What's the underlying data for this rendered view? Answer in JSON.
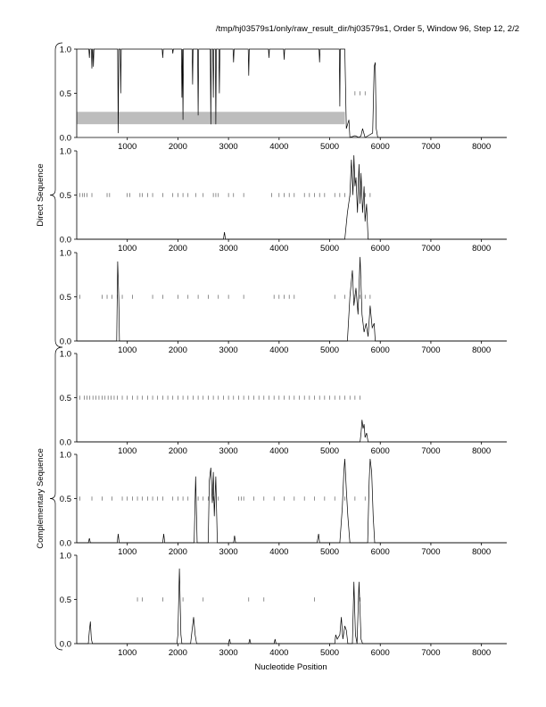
{
  "page": {
    "title": "/tmp/hj03579s1/only/raw_result_dir/hj03579s1, Order 5, Window 96, Step 12, 2/2"
  },
  "colors": {
    "line": "#000000",
    "axis": "#000000",
    "mark": "#444444",
    "band": "#bdbdbd"
  },
  "chart_data": {
    "type": "line",
    "xlabel": "Nucleotide Position",
    "group_labels": [
      "Direct Sequence",
      "Complementary Sequence"
    ],
    "xlim": [
      0,
      8500
    ],
    "ylim": [
      0,
      1
    ],
    "x_ticks": [
      1000,
      2000,
      3000,
      4000,
      5000,
      6000,
      7000,
      8000
    ],
    "y_ticks": [
      "0.0",
      "0.5",
      "1.0"
    ],
    "panels": [
      {
        "group": "Direct Sequence",
        "shaded_band": {
          "x": [
            0,
            5300
          ],
          "y": [
            0.15,
            0.29
          ]
        },
        "default_y": 1.0,
        "dips": [
          [
            250,
            0.9
          ],
          [
            300,
            0.78
          ],
          [
            330,
            0.8
          ],
          [
            820,
            0.05
          ],
          [
            870,
            0.5
          ],
          [
            1700,
            0.9
          ],
          [
            1900,
            0.95
          ],
          [
            2080,
            0.45
          ],
          [
            2100,
            0.2
          ],
          [
            2290,
            0.6
          ],
          [
            2400,
            0.25
          ],
          [
            2650,
            0.15
          ],
          [
            2700,
            0.45
          ],
          [
            2750,
            0.15
          ],
          [
            2820,
            0.5
          ],
          [
            3100,
            0.85
          ],
          [
            3400,
            0.7
          ],
          [
            3800,
            0.9
          ],
          [
            4100,
            0.88
          ],
          [
            4800,
            0.85
          ],
          [
            5200,
            0.35
          ]
        ],
        "trace": [
          [
            5250,
            1.0
          ],
          [
            5300,
            1.0
          ],
          [
            5330,
            0.1
          ],
          [
            5380,
            0.2
          ],
          [
            5400,
            0.0
          ],
          [
            5500,
            0.02
          ],
          [
            5580,
            0.0
          ],
          [
            5620,
            0.02
          ],
          [
            5650,
            0.1
          ],
          [
            5700,
            0.0
          ],
          [
            5850,
            0.05
          ],
          [
            5880,
            0.8
          ],
          [
            5900,
            0.85
          ],
          [
            5920,
            0.1
          ],
          [
            5950,
            0.0
          ],
          [
            8500,
            0.0
          ]
        ],
        "ticks_y": 0.5,
        "ticks_x": [
          5500,
          5600,
          5700
        ]
      },
      {
        "group": "Direct Sequence",
        "default_y": 0.0,
        "trace": [
          [
            0,
            0
          ],
          [
            2900,
            0
          ],
          [
            2920,
            0.08
          ],
          [
            2940,
            0
          ],
          [
            5300,
            0
          ],
          [
            5350,
            0.3
          ],
          [
            5400,
            0.5
          ],
          [
            5430,
            0.9
          ],
          [
            5460,
            0.5
          ],
          [
            5480,
            0.95
          ],
          [
            5500,
            0.6
          ],
          [
            5520,
            0.7
          ],
          [
            5550,
            0.3
          ],
          [
            5580,
            0.85
          ],
          [
            5600,
            0.4
          ],
          [
            5620,
            0.75
          ],
          [
            5650,
            0.3
          ],
          [
            5680,
            0.6
          ],
          [
            5700,
            0.2
          ],
          [
            5730,
            0.4
          ],
          [
            5760,
            0.0
          ],
          [
            8500,
            0
          ]
        ],
        "ticks_y": 0.5,
        "ticks_x": [
          60,
          110,
          150,
          200,
          300,
          600,
          650,
          1000,
          1050,
          1250,
          1300,
          1400,
          1500,
          1700,
          1900,
          2000,
          2100,
          2200,
          2350,
          2500,
          2700,
          2750,
          2800,
          3000,
          3100,
          3300,
          3850,
          4000,
          4100,
          4200,
          4300,
          4500,
          4600,
          4700,
          4800,
          4900,
          5100,
          5200,
          5300,
          5400,
          5600,
          5700,
          5800
        ]
      },
      {
        "group": "Direct Sequence",
        "default_y": 0.0,
        "trace": [
          [
            0,
            0
          ],
          [
            790,
            0
          ],
          [
            800,
            0.5
          ],
          [
            810,
            0.9
          ],
          [
            830,
            0.5
          ],
          [
            845,
            0
          ],
          [
            5350,
            0
          ],
          [
            5400,
            0.5
          ],
          [
            5450,
            0.8
          ],
          [
            5480,
            0.4
          ],
          [
            5520,
            0.6
          ],
          [
            5560,
            0.3
          ],
          [
            5600,
            0.95
          ],
          [
            5640,
            0.3
          ],
          [
            5680,
            0.1
          ],
          [
            5720,
            0.2
          ],
          [
            5760,
            0.05
          ],
          [
            5800,
            0.4
          ],
          [
            5840,
            0.15
          ],
          [
            5880,
            0.2
          ],
          [
            5900,
            0
          ],
          [
            8500,
            0
          ]
        ],
        "ticks_y": 0.5,
        "ticks_x": [
          60,
          500,
          600,
          700,
          800,
          900,
          1100,
          1500,
          1700,
          2000,
          2200,
          2400,
          2600,
          2800,
          3000,
          3300,
          3900,
          4000,
          4100,
          4200,
          4300,
          5100,
          5300,
          5500,
          5600,
          5700,
          5800
        ]
      },
      {
        "group": "Complementary Sequence",
        "default_y": 0.0,
        "trace": [
          [
            0,
            0
          ],
          [
            5600,
            0
          ],
          [
            5620,
            0.1
          ],
          [
            5640,
            0.25
          ],
          [
            5660,
            0.15
          ],
          [
            5680,
            0.2
          ],
          [
            5700,
            0.05
          ],
          [
            5730,
            0.1
          ],
          [
            5760,
            0.0
          ],
          [
            8500,
            0
          ]
        ],
        "ticks_y": 0.5,
        "ticks_x": [
          60,
          150,
          200,
          260,
          320,
          380,
          440,
          500,
          560,
          620,
          680,
          740,
          800,
          900,
          1000,
          1100,
          1200,
          1300,
          1400,
          1500,
          1600,
          1700,
          1800,
          1900,
          2000,
          2100,
          2200,
          2300,
          2400,
          2500,
          2600,
          2700,
          2800,
          2900,
          3000,
          3100,
          3200,
          3300,
          3400,
          3500,
          3600,
          3700,
          3800,
          3900,
          4000,
          4100,
          4200,
          4300,
          4400,
          4500,
          4600,
          4700,
          4800,
          4900,
          5000,
          5100,
          5200,
          5300,
          5400,
          5500,
          5600
        ]
      },
      {
        "group": "Complementary Sequence",
        "default_y": 0.0,
        "trace": [
          [
            0,
            0
          ],
          [
            230,
            0
          ],
          [
            250,
            0.05
          ],
          [
            270,
            0
          ],
          [
            800,
            0
          ],
          [
            820,
            0.1
          ],
          [
            840,
            0
          ],
          [
            1700,
            0
          ],
          [
            1720,
            0.1
          ],
          [
            1740,
            0
          ],
          [
            2320,
            0
          ],
          [
            2350,
            0.75
          ],
          [
            2380,
            0
          ],
          [
            2600,
            0
          ],
          [
            2620,
            0.7
          ],
          [
            2650,
            0.85
          ],
          [
            2680,
            0.45
          ],
          [
            2700,
            0.8
          ],
          [
            2720,
            0.3
          ],
          [
            2750,
            0.75
          ],
          [
            2780,
            0
          ],
          [
            3100,
            0
          ],
          [
            3120,
            0.08
          ],
          [
            3140,
            0
          ],
          [
            4750,
            0
          ],
          [
            4780,
            0.1
          ],
          [
            4800,
            0
          ],
          [
            5200,
            0
          ],
          [
            5250,
            0.4
          ],
          [
            5280,
            0.8
          ],
          [
            5300,
            0.95
          ],
          [
            5330,
            0.6
          ],
          [
            5360,
            0.3
          ],
          [
            5400,
            0
          ],
          [
            5750,
            0
          ],
          [
            5780,
            0.7
          ],
          [
            5800,
            0.95
          ],
          [
            5830,
            0.8
          ],
          [
            5860,
            0.3
          ],
          [
            5890,
            0
          ],
          [
            8500,
            0
          ]
        ],
        "ticks_y": 0.5,
        "ticks_x": [
          60,
          300,
          500,
          700,
          900,
          1000,
          1100,
          1200,
          1300,
          1400,
          1500,
          1600,
          1700,
          1900,
          2000,
          2100,
          2200,
          2400,
          2500,
          2600,
          2700,
          2800,
          3200,
          3250,
          3300,
          3500,
          3700,
          3900,
          4100,
          4300,
          4500,
          4700,
          4900,
          5100,
          5300,
          5500,
          5700
        ]
      },
      {
        "group": "Complementary Sequence",
        "default_y": 0.0,
        "trace": [
          [
            0,
            0
          ],
          [
            230,
            0
          ],
          [
            250,
            0.15
          ],
          [
            270,
            0.25
          ],
          [
            290,
            0.05
          ],
          [
            310,
            0
          ],
          [
            1980,
            0
          ],
          [
            2000,
            0.1
          ],
          [
            2030,
            0.85
          ],
          [
            2060,
            0.1
          ],
          [
            2080,
            0
          ],
          [
            2250,
            0
          ],
          [
            2280,
            0.15
          ],
          [
            2310,
            0.3
          ],
          [
            2340,
            0.1
          ],
          [
            2370,
            0
          ],
          [
            3000,
            0
          ],
          [
            3020,
            0.05
          ],
          [
            3040,
            0
          ],
          [
            3400,
            0
          ],
          [
            3420,
            0.05
          ],
          [
            3440,
            0
          ],
          [
            3900,
            0
          ],
          [
            3920,
            0.05
          ],
          [
            3940,
            0
          ],
          [
            5100,
            0
          ],
          [
            5120,
            0.1
          ],
          [
            5150,
            0.05
          ],
          [
            5200,
            0.1
          ],
          [
            5230,
            0.3
          ],
          [
            5260,
            0.05
          ],
          [
            5300,
            0.2
          ],
          [
            5330,
            0.15
          ],
          [
            5360,
            0
          ],
          [
            5450,
            0
          ],
          [
            5480,
            0.7
          ],
          [
            5510,
            0.1
          ],
          [
            5540,
            0
          ],
          [
            5580,
            0.7
          ],
          [
            5620,
            0.05
          ],
          [
            5650,
            0
          ],
          [
            8500,
            0
          ]
        ],
        "ticks_y": 0.5,
        "ticks_x": [
          1200,
          1300,
          1700,
          2100,
          2500,
          3400,
          3700,
          4700,
          5600
        ]
      }
    ]
  }
}
